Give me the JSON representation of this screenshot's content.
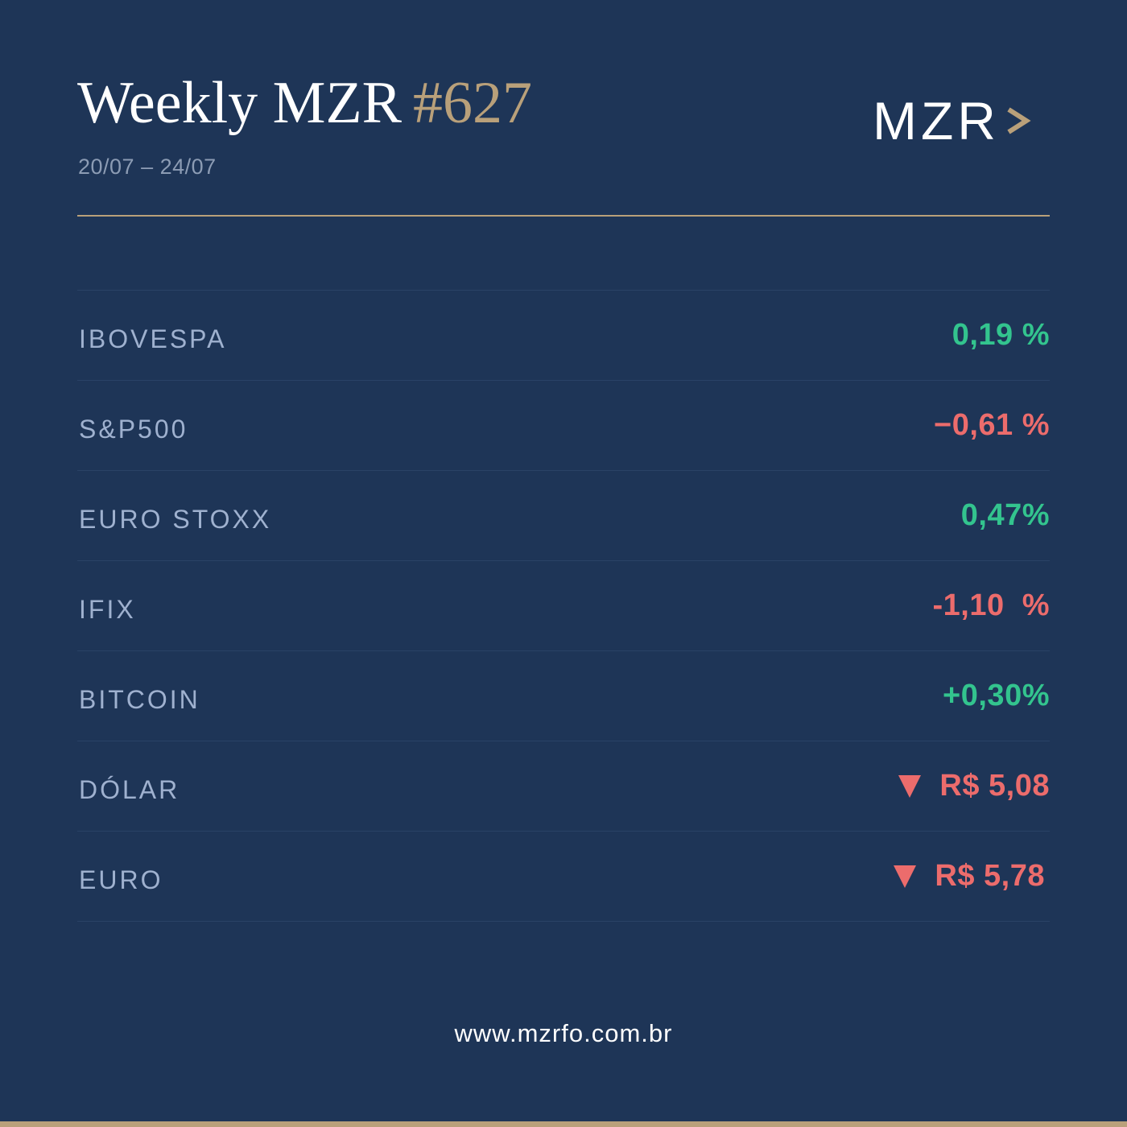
{
  "header": {
    "title": "Weekly MZR",
    "issue": "#627",
    "dates": "20/07 – 24/07"
  },
  "logo": {
    "text": "MZR",
    "chevron_icon": "chevron-right-icon"
  },
  "rows": [
    {
      "label": "IBOVESPA",
      "value": "0,19 %",
      "trend": "up"
    },
    {
      "label": "S&P500",
      "value": "−0,61 %",
      "trend": "down"
    },
    {
      "label": "EURO STOXX",
      "value": "0,47%",
      "trend": "up"
    },
    {
      "label": "IFIX",
      "value": "-1,10  %",
      "trend": "down"
    },
    {
      "label": "BITCOIN",
      "value": "+0,30%",
      "trend": "up"
    },
    {
      "label": "DÓLAR",
      "value": "R$ 5,08",
      "trend": "down",
      "icon": "triangle-down-icon"
    },
    {
      "label": "EURO",
      "value": "R$ 5,78",
      "trend": "down",
      "icon": "triangle-down-icon"
    }
  ],
  "footer": {
    "url": "www.mzrfo.com.br"
  },
  "colors": {
    "background": "#1e3557",
    "accent_gold": "#b9a07a",
    "positive": "#33c48e",
    "negative": "#ec6c6c"
  }
}
